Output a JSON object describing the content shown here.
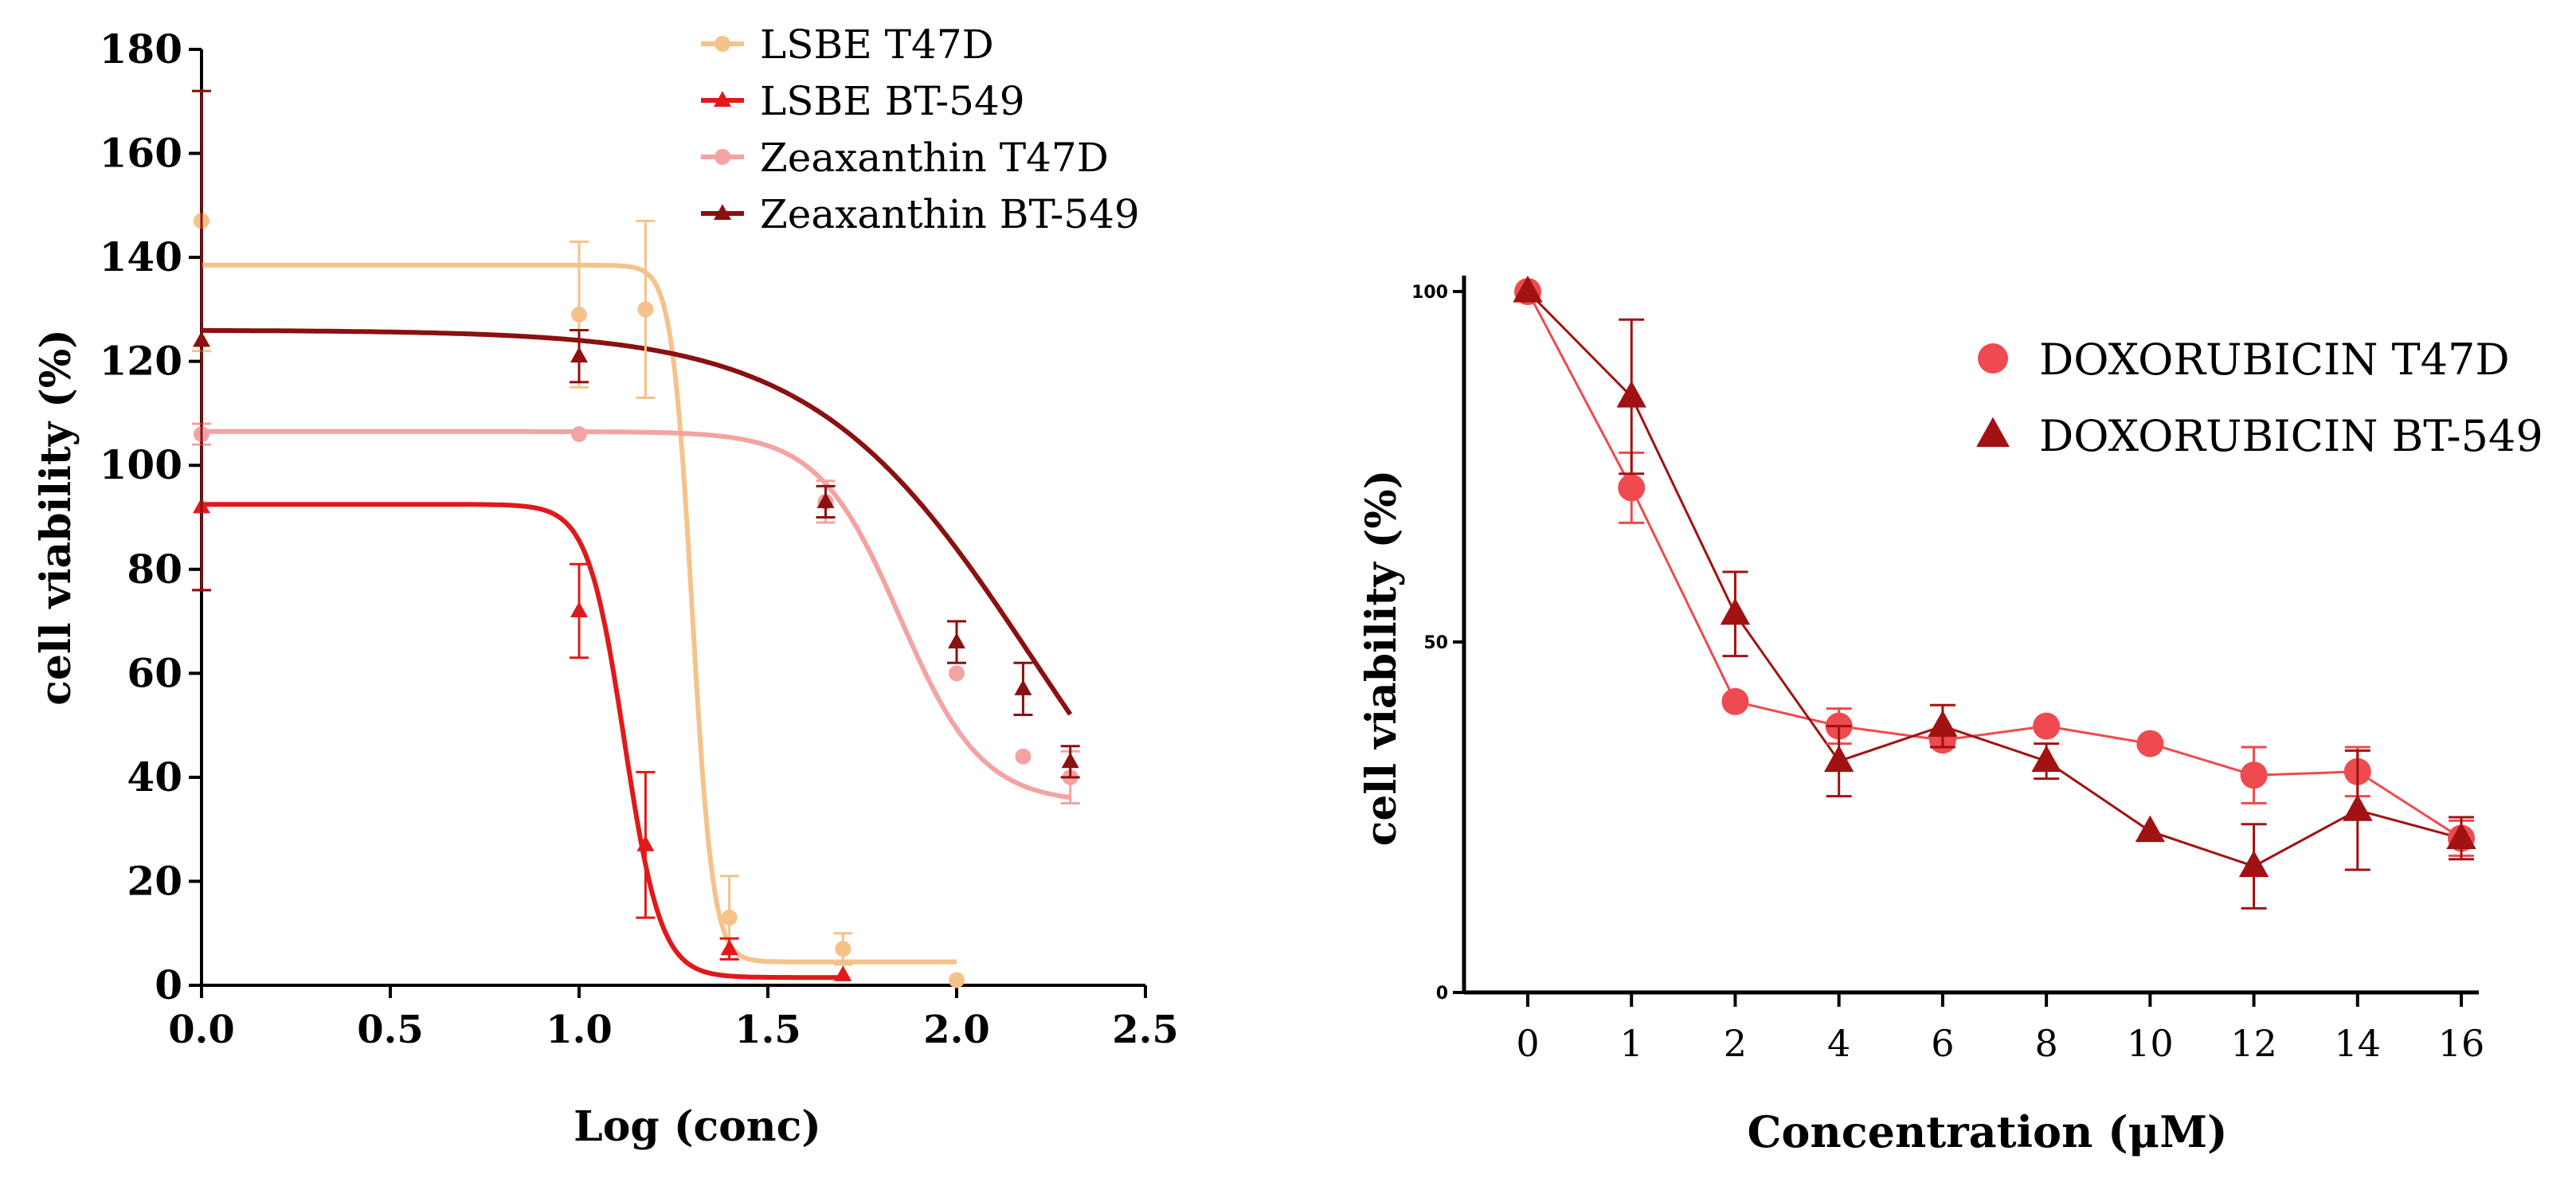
{
  "chart_data": [
    {
      "type": "scatter",
      "fit": "sigmoidal dose-response",
      "xlabel": "Log (conc)",
      "ylabel": "cell viability (%)",
      "xlim": [
        0,
        2.5
      ],
      "ylim": [
        0,
        180
      ],
      "xticks": [
        "0.0",
        "0.5",
        "1.0",
        "1.5",
        "2.0",
        "2.5"
      ],
      "yticks": [
        "0",
        "20",
        "40",
        "60",
        "80",
        "100",
        "120",
        "140",
        "160",
        "180"
      ],
      "legend_position": "top-center",
      "series": [
        {
          "name": "LSBE T47D",
          "color": "#f5c28a",
          "marker": "circle",
          "x": [
            0,
            1.0,
            1.176,
            1.398,
            1.699,
            2.0
          ],
          "y": [
            147,
            129,
            130,
            13,
            7,
            1
          ],
          "error": [
            25,
            14,
            17,
            8,
            3,
            0
          ],
          "curve": {
            "top": 138.5,
            "bottom": 4.5,
            "log_ic50": 1.3,
            "hill": 16
          }
        },
        {
          "name": "LSBE BT-549",
          "color": "#e01a1a",
          "marker": "triangle",
          "x": [
            0,
            1.0,
            1.176,
            1.398,
            1.699
          ],
          "y": [
            92,
            72,
            27,
            7,
            2
          ],
          "error": [
            16,
            9,
            14,
            2,
            0
          ],
          "curve": {
            "top": 92.5,
            "bottom": 1.5,
            "log_ic50": 1.12,
            "hill": 9
          }
        },
        {
          "name": "Zeaxanthin T47D",
          "color": "#f4a3a3",
          "marker": "circle",
          "x": [
            0,
            1.0,
            1.653,
            2.0,
            2.176,
            2.301
          ],
          "y": [
            106,
            106,
            93,
            60,
            44,
            40
          ],
          "error": [
            2,
            0,
            4,
            0,
            0,
            5
          ],
          "curve": {
            "top": 106.5,
            "bottom": 35,
            "log_ic50": 1.85,
            "hill": 4
          }
        },
        {
          "name": "Zeaxanthin BT-549",
          "color": "#8b1010",
          "marker": "triangle",
          "x": [
            0,
            1.0,
            1.653,
            2.0,
            2.176,
            2.301
          ],
          "y": [
            124,
            121,
            93,
            66,
            57,
            43
          ],
          "error": [
            48,
            5,
            3,
            4,
            5,
            3
          ],
          "curve": {
            "top": 126,
            "bottom": 0,
            "log_ic50": 2.2,
            "hill": 1.5
          }
        }
      ]
    },
    {
      "type": "line",
      "xlabel": "Concentration (μM)",
      "ylabel": "cell viability (%)",
      "categories": [
        "0",
        "1",
        "2",
        "4",
        "6",
        "8",
        "10",
        "12",
        "14",
        "16"
      ],
      "ylim": [
        0,
        100
      ],
      "yticks": [
        "0",
        "50",
        "100"
      ],
      "legend_position": "top-right",
      "series": [
        {
          "name": "DOXORUBICIN T47D",
          "color": "#ee4a4f",
          "marker": "circle",
          "values": [
            100,
            72,
            41.5,
            38,
            36,
            38,
            35.5,
            31,
            31.5,
            22
          ],
          "error": [
            0,
            5,
            0,
            2.5,
            0,
            0,
            0,
            4,
            3.5,
            2.5
          ]
        },
        {
          "name": "DOXORUBICIN BT-549",
          "color": "#a11212",
          "marker": "triangle",
          "values": [
            100,
            85,
            54,
            33,
            38,
            33,
            23,
            18,
            26,
            22
          ],
          "error": [
            0,
            11,
            6,
            5,
            3,
            2.5,
            0,
            6,
            8.5,
            3
          ]
        }
      ]
    }
  ]
}
